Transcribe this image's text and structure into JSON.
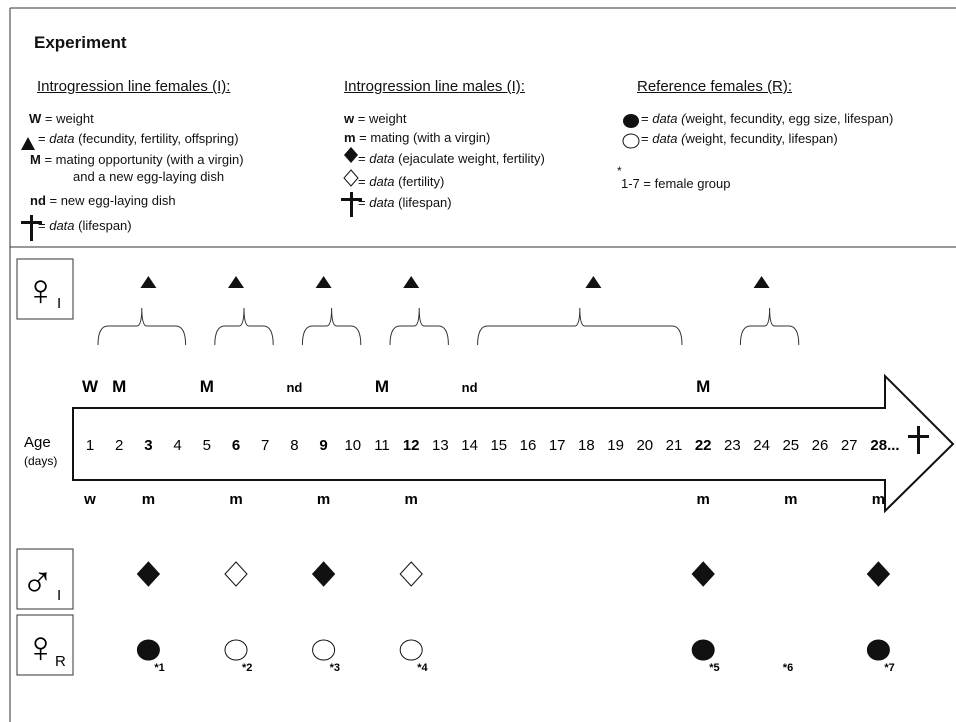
{
  "title": "Experiment",
  "legend": {
    "females_i": {
      "heading": "Introgression line females (I):",
      "items": [
        {
          "sym": "W",
          "rest": " = weight"
        },
        {
          "sym": "",
          "pre": " = ",
          "em": "data",
          "rest": " (fecundity, fertility, offspring)"
        },
        {
          "sym": "M",
          "rest": " = mating opportunity (with a virgin)"
        },
        {
          "sym": "",
          "rest": "and a new egg-laying dish"
        },
        {
          "sym": "nd",
          "rest": " = new egg-laying dish"
        },
        {
          "sym": "",
          "pre": " = ",
          "em": "data",
          "rest": " (lifespan)"
        }
      ]
    },
    "males_i": {
      "heading": "Introgression line males (I):",
      "items": [
        {
          "sym": "w",
          "rest": " = weight"
        },
        {
          "sym": "m",
          "rest": " = mating (with a virgin)"
        },
        {
          "sym": "",
          "pre": " = ",
          "em": "data",
          "rest": " (ejaculate weight, fertility)"
        },
        {
          "sym": "",
          "pre": " = ",
          "em": "data",
          "rest": " (fertility)"
        },
        {
          "sym": "",
          "pre": " = ",
          "em": "data",
          "rest": " (lifespan)"
        }
      ]
    },
    "ref_females": {
      "heading": "Reference females (R):",
      "items": [
        {
          "pre": " = ",
          "em": "data (",
          "rest": "weight, fecundity, egg size, lifespan)"
        },
        {
          "pre": " = ",
          "em": "data (",
          "rest": "weight, fecundity, lifespan)"
        }
      ],
      "group_star": "*",
      "group_text": "1-7  = female group"
    }
  },
  "timeline": {
    "age_label": "Age",
    "age_unit": "(days)",
    "days": [
      {
        "d": "1",
        "bold": false
      },
      {
        "d": "2",
        "bold": false
      },
      {
        "d": "3",
        "bold": true
      },
      {
        "d": "4",
        "bold": false
      },
      {
        "d": "5",
        "bold": false
      },
      {
        "d": "6",
        "bold": true
      },
      {
        "d": "7",
        "bold": false
      },
      {
        "d": "8",
        "bold": false
      },
      {
        "d": "9",
        "bold": true
      },
      {
        "d": "10",
        "bold": false
      },
      {
        "d": "11",
        "bold": false
      },
      {
        "d": "12",
        "bold": true
      },
      {
        "d": "13",
        "bold": false
      },
      {
        "d": "14",
        "bold": false
      },
      {
        "d": "15",
        "bold": false
      },
      {
        "d": "16",
        "bold": false
      },
      {
        "d": "17",
        "bold": false
      },
      {
        "d": "18",
        "bold": false
      },
      {
        "d": "19",
        "bold": false
      },
      {
        "d": "20",
        "bold": false
      },
      {
        "d": "21",
        "bold": false
      },
      {
        "d": "22",
        "bold": true
      },
      {
        "d": "23",
        "bold": false
      },
      {
        "d": "24",
        "bold": false
      },
      {
        "d": "25",
        "bold": false
      },
      {
        "d": "26",
        "bold": false
      },
      {
        "d": "27",
        "bold": false
      },
      {
        "d": "28...",
        "bold": true
      }
    ],
    "female_above": [
      {
        "day": 1,
        "text": "W"
      },
      {
        "day": 2,
        "text": "M"
      },
      {
        "day": 5,
        "text": "M"
      },
      {
        "day": 8,
        "text": "nd"
      },
      {
        "day": 11,
        "text": "M"
      },
      {
        "day": 14,
        "text": "nd"
      },
      {
        "day": 22,
        "text": "M"
      }
    ],
    "male_below": [
      {
        "day": 1,
        "text": "w"
      },
      {
        "day": 3,
        "text": "m"
      },
      {
        "day": 6,
        "text": "m"
      },
      {
        "day": 9,
        "text": "m"
      },
      {
        "day": 12,
        "text": "m"
      },
      {
        "day": 22,
        "text": "m"
      },
      {
        "day": 25,
        "text": "m"
      },
      {
        "day": 28,
        "text": "m"
      }
    ],
    "fecundity_days": [
      3,
      6,
      9,
      12,
      18,
      24
    ],
    "brackets": [
      [
        1,
        4
      ],
      [
        5,
        7
      ],
      [
        8,
        10
      ],
      [
        11,
        13
      ],
      [
        14,
        21
      ],
      [
        23,
        25
      ]
    ],
    "male_data": [
      {
        "day": 3,
        "type": "filled"
      },
      {
        "day": 6,
        "type": "open"
      },
      {
        "day": 9,
        "type": "filled"
      },
      {
        "day": 12,
        "type": "open"
      },
      {
        "day": 22,
        "type": "filled"
      },
      {
        "day": 28,
        "type": "filled"
      }
    ],
    "ref_data": [
      {
        "day": 3,
        "type": "filled",
        "group": "*1"
      },
      {
        "day": 6,
        "type": "open",
        "group": "*2"
      },
      {
        "day": 9,
        "type": "open",
        "group": "*3"
      },
      {
        "day": 12,
        "type": "open",
        "group": "*4"
      },
      {
        "day": 22,
        "type": "filled",
        "group": "*5"
      },
      {
        "day": 25,
        "type": "none",
        "group": "*6"
      },
      {
        "day": 28,
        "type": "filled",
        "group": "*7"
      }
    ]
  },
  "rows": {
    "female_i": {
      "symbol": "♀",
      "sub": "I"
    },
    "male_i": {
      "symbol": "♂",
      "sub": "I"
    },
    "female_r": {
      "symbol": "♀",
      "sub": "R"
    }
  }
}
